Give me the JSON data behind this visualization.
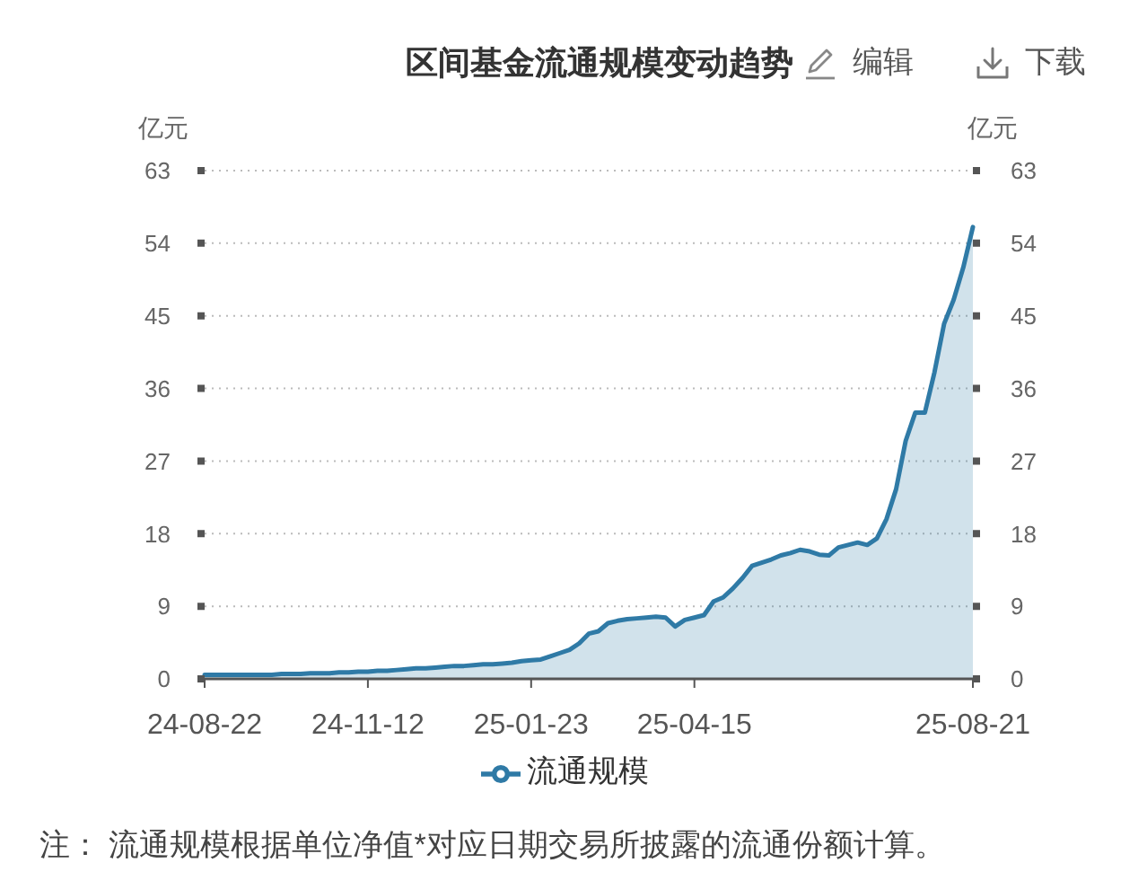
{
  "chart_data": {
    "type": "area",
    "title": "区间基金流通规模变动趋势",
    "ylabel": "亿元",
    "y2label": "亿元",
    "categories": [
      "24-08-22",
      null,
      null,
      null,
      null,
      null,
      null,
      null,
      null,
      null,
      null,
      null,
      null,
      null,
      null,
      null,
      null,
      "24-11-12",
      null,
      null,
      null,
      null,
      null,
      null,
      null,
      null,
      null,
      null,
      null,
      null,
      null,
      null,
      null,
      null,
      "25-01-23",
      null,
      null,
      null,
      null,
      null,
      null,
      null,
      null,
      null,
      null,
      null,
      null,
      null,
      null,
      null,
      null,
      "25-04-15",
      null,
      null,
      null,
      null,
      null,
      null,
      null,
      null,
      null,
      null,
      null,
      null,
      null,
      null,
      null,
      null,
      null,
      null,
      null,
      null,
      null,
      null,
      null,
      null,
      null,
      null,
      null,
      null,
      "25-08-21"
    ],
    "series": [
      {
        "name": "流通规模",
        "color": "#2f7aa6",
        "values": [
          0.5,
          0.5,
          0.5,
          0.5,
          0.5,
          0.5,
          0.5,
          0.5,
          0.6,
          0.6,
          0.6,
          0.7,
          0.7,
          0.7,
          0.8,
          0.8,
          0.9,
          0.9,
          1.0,
          1.0,
          1.1,
          1.2,
          1.3,
          1.3,
          1.4,
          1.5,
          1.6,
          1.6,
          1.7,
          1.8,
          1.8,
          1.9,
          2.0,
          2.2,
          2.3,
          2.4,
          2.8,
          3.2,
          3.6,
          4.4,
          5.6,
          5.9,
          6.9,
          7.2,
          7.4,
          7.5,
          7.6,
          7.7,
          7.6,
          6.5,
          7.3,
          7.6,
          7.9,
          9.6,
          10.1,
          11.2,
          12.5,
          14.0,
          14.4,
          14.8,
          15.3,
          15.6,
          16.0,
          15.8,
          15.4,
          15.3,
          16.3,
          16.6,
          16.9,
          16.6,
          17.4,
          19.8,
          23.5,
          29.5,
          33.0,
          33.0,
          38.0,
          44.0,
          47.0,
          51.0,
          56.0
        ]
      }
    ],
    "ylim": [
      0,
      63
    ],
    "yticks": [
      0,
      9,
      18,
      27,
      36,
      45,
      54,
      63
    ],
    "y2lim": [
      0,
      63
    ],
    "y2ticks": [
      0,
      9,
      18,
      27,
      36,
      45,
      54,
      63
    ],
    "grid": "y",
    "legend": "bottom",
    "annotations": [
      "编辑",
      "下载",
      "注： 流通规模根据单位净值*对应日期交易所披露的流通份额计算。"
    ]
  }
}
